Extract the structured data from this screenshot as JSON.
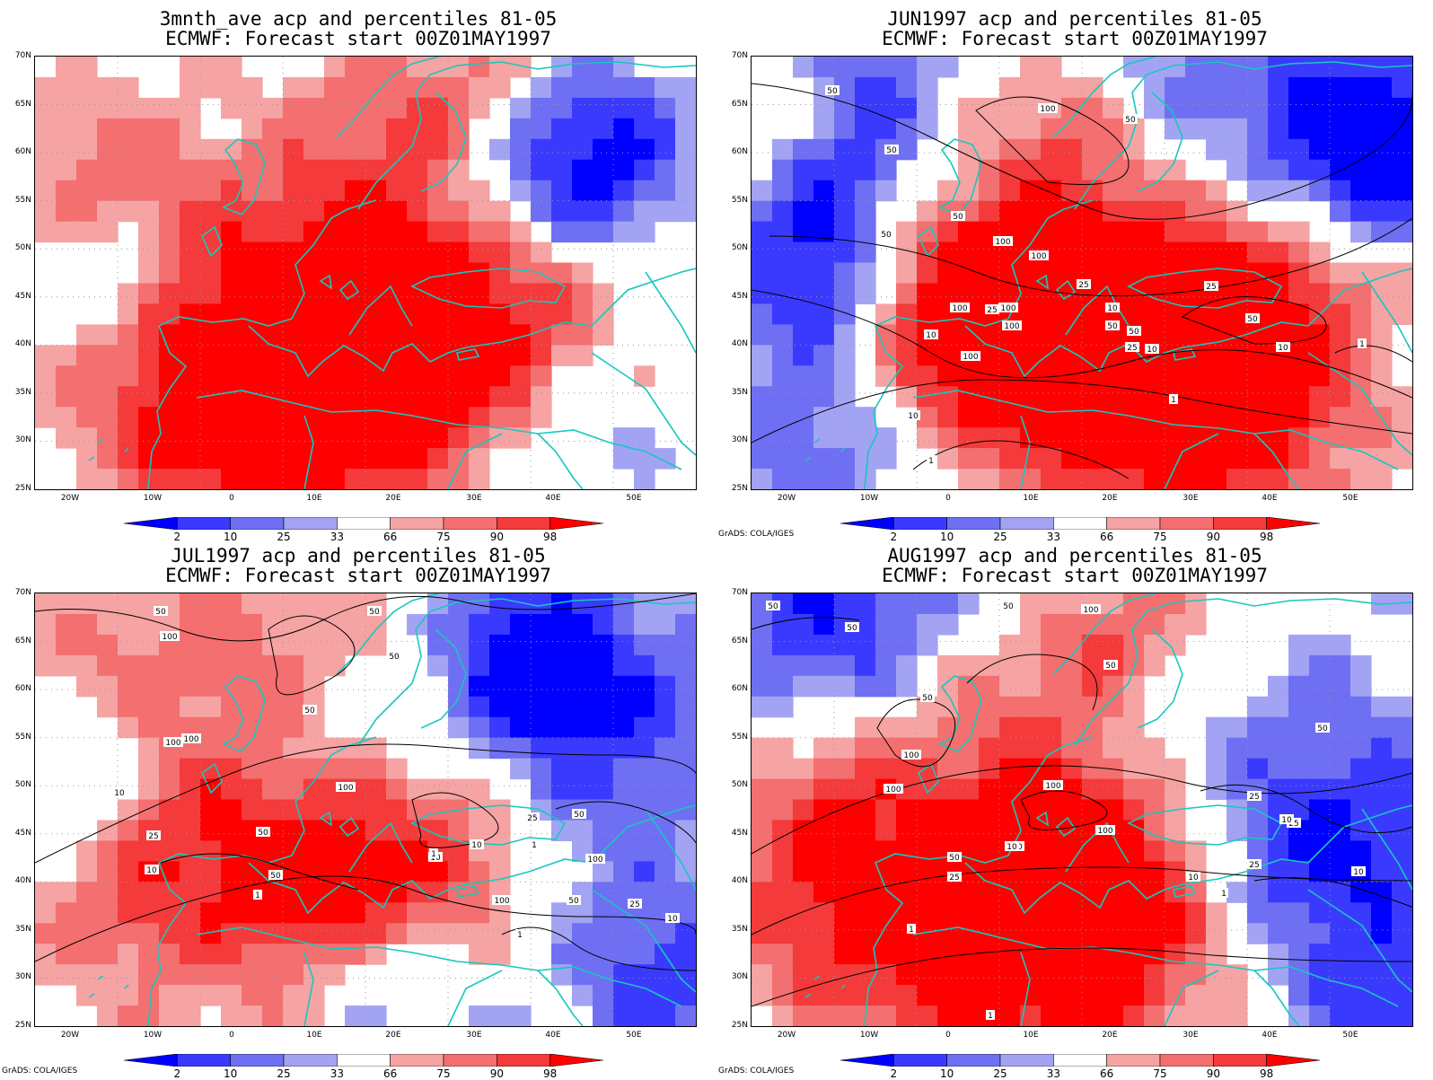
{
  "colorbar": {
    "labels": [
      "2",
      "10",
      "25",
      "33",
      "66",
      "75",
      "90",
      "98"
    ],
    "colors": [
      "#0000ff",
      "#3a3aff",
      "#6f6ff3",
      "#a3a3f4",
      "#ffffff",
      "#f6a3a3",
      "#f46f6f",
      "#f43a3a",
      "#ff0000"
    ]
  },
  "axes": {
    "lat_labels": [
      "70N",
      "65N",
      "60N",
      "55N",
      "50N",
      "45N",
      "40N",
      "35N",
      "30N",
      "25N"
    ],
    "lon_labels": [
      "20W",
      "10W",
      "0",
      "10E",
      "20E",
      "30E",
      "40E",
      "50E"
    ]
  },
  "credit": "GrADS: COLA/IGES",
  "panels": [
    {
      "title1": "3mnth_ave acp and percentiles 81-05",
      "title2": "ECMWF: Forecast start 00Z01MAY1997",
      "show_credit": false,
      "contour_labels": []
    },
    {
      "title1": "JUN1997 acp and percentiles 81-05",
      "title2": "ECMWF: Forecast start 00Z01MAY1997",
      "show_credit": true,
      "contour_labels": [
        "50",
        "50",
        "100",
        "50",
        "50",
        "50",
        "100",
        "100",
        "100",
        "100",
        "25",
        "100",
        "25",
        "10",
        "50",
        "10",
        "100",
        "25",
        "50",
        "10",
        "1",
        "10",
        "1",
        "50",
        "25",
        "10",
        "1"
      ]
    },
    {
      "title1": "JUL1997 acp and percentiles 81-05",
      "title2": "ECMWF: Forecast start 00Z01MAY1997",
      "show_credit": true,
      "contour_labels": [
        "50",
        "100",
        "50",
        "100",
        "100",
        "50",
        "50",
        "100",
        "50",
        "10",
        "25",
        "10",
        "50",
        "10",
        "10",
        "1",
        "1",
        "100",
        "25",
        "50",
        "100",
        "25",
        "10",
        "1",
        "50",
        "1"
      ]
    },
    {
      "title1": "AUG1997 acp and percentiles 81-05",
      "title2": "ECMWF: Forecast start 00Z01MAY1997",
      "show_credit": true,
      "contour_labels": [
        "50",
        "50",
        "50",
        "100",
        "50",
        "50",
        "100",
        "100",
        "100",
        "50",
        "25",
        "100",
        "10",
        "50",
        "25",
        "10",
        "10",
        "25",
        "10",
        "1",
        "1",
        "25",
        "10",
        "1"
      ]
    }
  ]
}
